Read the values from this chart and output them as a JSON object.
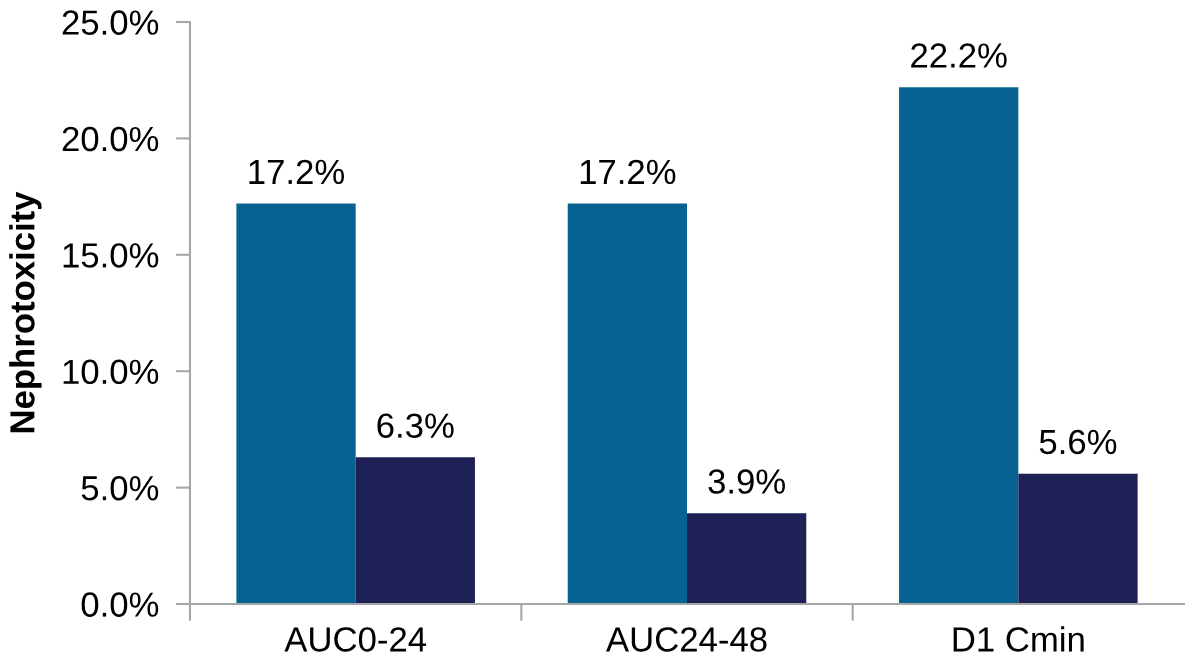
{
  "chart_data": {
    "type": "bar",
    "ylabel": "Nephrotoxicity",
    "categories": [
      "AUC0-24",
      "AUC24-48",
      "D1 Cmin"
    ],
    "series": [
      {
        "color": "#066391",
        "values": [
          17.2,
          17.2,
          22.2
        ],
        "value_labels": [
          "17.2%",
          "17.2%",
          "22.2%"
        ]
      },
      {
        "color": "#1f2056",
        "values": [
          6.3,
          3.9,
          5.6
        ],
        "value_labels": [
          "6.3%",
          "3.9%",
          "5.6%"
        ]
      }
    ],
    "ylim": [
      0,
      25
    ],
    "yticks": [
      {
        "value": 0,
        "label": "0.0%"
      },
      {
        "value": 5,
        "label": "5.0%"
      },
      {
        "value": 10,
        "label": "10.0%"
      },
      {
        "value": 15,
        "label": "15.0%"
      },
      {
        "value": 20,
        "label": "20.0%"
      },
      {
        "value": 25,
        "label": "25.0%"
      }
    ]
  }
}
